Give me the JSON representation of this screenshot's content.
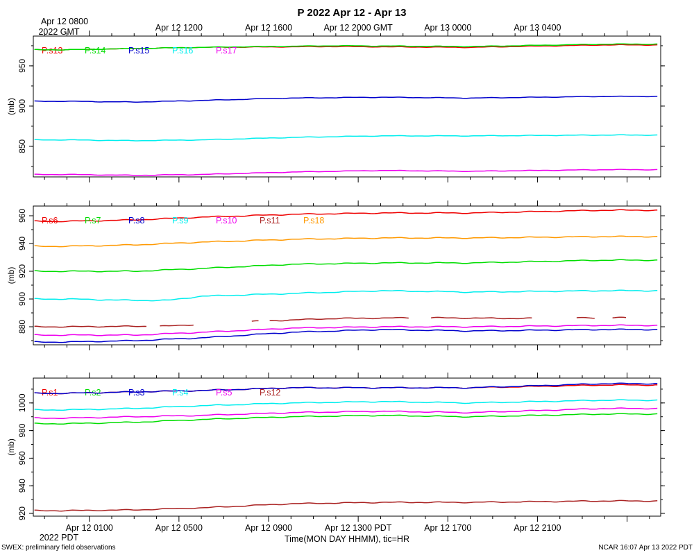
{
  "header": {
    "title": "P 2022 Apr 12 - Apr 13",
    "gmt_origin_label": "Apr 12 0800",
    "gmt_origin_sub": "2022 GMT",
    "gmt_ticks": [
      "Apr 12 1200",
      "Apr 12 1600",
      "Apr 12 2000 GMT",
      "Apr 13 0000",
      "Apr 13 0400"
    ]
  },
  "footer": {
    "pdt_ticks": [
      "Apr 12 0100",
      "Apr 12 0500",
      "Apr 12 0900",
      "Apr 12 1300 PDT",
      "Apr 12 1700",
      "Apr 12 2100"
    ],
    "pdt_origin_sub": "2022 PDT",
    "xlabel": "Time(MON DAY HHMM), tic=HR",
    "left_note": "SWEX: preliminary field observations",
    "right_note": "NCAR 16:07 Apr 13 2022 PDT"
  },
  "colors": {
    "red": "#ee0000",
    "green": "#00dd00",
    "blue": "#0000cc",
    "cyan": "#00eeee",
    "magenta": "#ee00ee",
    "brown": "#aa2222",
    "orange": "#ff9900"
  },
  "chart_data": [
    {
      "type": "line",
      "title": "",
      "xlabel": "",
      "ylabel": "(mb)",
      "x_units": "hours since Apr 12 0000 PDT",
      "ylim": [
        812,
        987
      ],
      "yticks": [
        850,
        900,
        950
      ],
      "grid": false,
      "legend_position": "top-left",
      "series": [
        {
          "name": "P.s13",
          "color": "#ee0000",
          "x": [
            0,
            6,
            12,
            18,
            24
          ],
          "values": [
            970,
            973,
            974,
            973,
            976
          ]
        },
        {
          "name": "P.s14",
          "color": "#00dd00",
          "x": [
            0,
            6,
            12,
            18,
            24
          ],
          "values": [
            970,
            973,
            975,
            974,
            977
          ]
        },
        {
          "name": "P.s15",
          "color": "#0000cc",
          "x": [
            0,
            3,
            6,
            10,
            14,
            18,
            24
          ],
          "values": [
            906,
            905,
            907,
            910,
            911,
            910,
            912
          ]
        },
        {
          "name": "P.s16",
          "color": "#00eeee",
          "x": [
            0,
            3,
            6,
            10,
            14,
            18,
            24
          ],
          "values": [
            858,
            857,
            858,
            861,
            863,
            863,
            864
          ]
        },
        {
          "name": "P.s17",
          "color": "#ee00ee",
          "x": [
            0,
            3,
            6,
            10,
            14,
            18,
            24
          ],
          "values": [
            815,
            814,
            815,
            818,
            820,
            819,
            821
          ]
        }
      ]
    },
    {
      "type": "line",
      "title": "",
      "xlabel": "",
      "ylabel": "(mb)",
      "x_units": "hours since Apr 12 0000 PDT",
      "ylim": [
        867,
        967
      ],
      "yticks": [
        880,
        900,
        920,
        940,
        960
      ],
      "grid": false,
      "legend_position": "top-left",
      "series": [
        {
          "name": "P.s6",
          "color": "#ee0000",
          "x": [
            0,
            3,
            6,
            10,
            14,
            18,
            24
          ],
          "values": [
            956,
            957,
            959,
            961,
            962,
            962,
            964
          ]
        },
        {
          "name": "P.s7",
          "color": "#00dd00",
          "x": [
            0,
            3,
            6,
            10,
            14,
            18,
            24
          ],
          "values": [
            920,
            920,
            922,
            925,
            926,
            926,
            928
          ]
        },
        {
          "name": "P.s8",
          "color": "#0000cc",
          "x": [
            0,
            3,
            6,
            10,
            14,
            18,
            24
          ],
          "values": [
            869,
            870,
            872,
            876,
            878,
            877,
            878
          ]
        },
        {
          "name": "P.s9",
          "color": "#00eeee",
          "x": [
            0,
            3,
            4.5,
            6,
            10,
            14,
            18,
            24
          ],
          "values": [
            900,
            899,
            899,
            902,
            904,
            906,
            905,
            906
          ]
        },
        {
          "name": "P.s10",
          "color": "#ee00ee",
          "x": [
            0,
            3,
            6,
            10,
            14,
            18,
            24
          ],
          "values": [
            874,
            874,
            876,
            879,
            880,
            880,
            881
          ]
        },
        {
          "name": "P.s11",
          "color": "#aa2222",
          "x": [
            0,
            4.5,
            8.5,
            12,
            16,
            20,
            24
          ],
          "values": [
            880,
            880.5,
            884,
            886,
            886.5,
            886,
            886.5
          ],
          "note": "intermittent (gaps in record)"
        },
        {
          "name": "P.s18",
          "color": "#ff9900",
          "x": [
            0,
            3,
            6,
            10,
            14,
            18,
            24
          ],
          "values": [
            938,
            939,
            941,
            943,
            944,
            944,
            945
          ]
        }
      ]
    },
    {
      "type": "line",
      "title": "",
      "xlabel": "Time(MON DAY HHMM), tic=HR",
      "ylabel": "(mb)",
      "x_units": "hours since Apr 12 0000 PDT",
      "ylim": [
        918,
        1018
      ],
      "yticks": [
        920,
        940,
        960,
        980,
        1000
      ],
      "grid": false,
      "legend_position": "top-left",
      "series": [
        {
          "name": "P.s1",
          "color": "#ee0000",
          "x": [
            0,
            3,
            6,
            10,
            14,
            18,
            24
          ],
          "values": [
            1007,
            1008,
            1009,
            1011,
            1011,
            1011,
            1013
          ]
        },
        {
          "name": "P.s2",
          "color": "#00dd00",
          "x": [
            0,
            3,
            6,
            10,
            14,
            18,
            24
          ],
          "values": [
            985,
            986,
            988,
            990,
            991,
            990,
            992
          ]
        },
        {
          "name": "P.s3",
          "color": "#0000cc",
          "x": [
            0,
            3,
            6,
            10,
            14,
            18,
            24
          ],
          "values": [
            1007,
            1008,
            1009,
            1011,
            1011,
            1011,
            1014
          ]
        },
        {
          "name": "P.s4",
          "color": "#00eeee",
          "x": [
            0,
            3,
            6,
            10,
            14,
            18,
            24
          ],
          "values": [
            995,
            996,
            998,
            1000,
            1001,
            1000,
            1002
          ]
        },
        {
          "name": "P.s5",
          "color": "#ee00ee",
          "x": [
            0,
            3,
            6,
            10,
            14,
            18,
            24
          ],
          "values": [
            989,
            990,
            991,
            993,
            994,
            993,
            996
          ]
        },
        {
          "name": "P.s12",
          "color": "#aa2222",
          "x": [
            0,
            3,
            6,
            10,
            14,
            18,
            24
          ],
          "values": [
            922,
            922.5,
            924,
            927,
            928,
            928,
            929
          ]
        }
      ]
    }
  ]
}
